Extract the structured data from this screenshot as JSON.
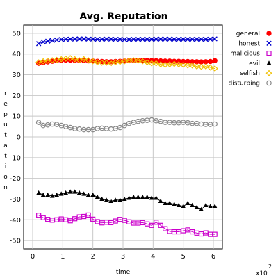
{
  "chart_data": {
    "type": "line",
    "title": "Avg. Reputation",
    "xlabel": "time",
    "ylabel": "reputation",
    "x_multiplier_label": "x10",
    "x_multiplier_exp": "2",
    "xlim": [
      -0.3,
      6.3
    ],
    "ylim": [
      -54,
      54
    ],
    "xticks": [
      0,
      1,
      2,
      3,
      4,
      5,
      6
    ],
    "yticks": [
      50,
      40,
      30,
      20,
      10,
      0,
      -10,
      -20,
      -30,
      -40,
      -50
    ],
    "grid": true,
    "legend_position": "right",
    "x": [
      0.2,
      0.35,
      0.5,
      0.65,
      0.8,
      0.95,
      1.1,
      1.25,
      1.4,
      1.55,
      1.7,
      1.85,
      2.0,
      2.15,
      2.3,
      2.45,
      2.6,
      2.75,
      2.9,
      3.05,
      3.2,
      3.35,
      3.5,
      3.65,
      3.8,
      3.95,
      4.1,
      4.25,
      4.4,
      4.55,
      4.7,
      4.85,
      5.0,
      5.15,
      5.3,
      5.45,
      5.6,
      5.75,
      5.9,
      6.05
    ],
    "series": [
      {
        "name": "general",
        "color": "#ff0000",
        "marker": "dot",
        "values": [
          35.5,
          35.8,
          36.2,
          36.5,
          36.8,
          36.9,
          37.0,
          37.0,
          36.9,
          36.8,
          36.8,
          36.7,
          36.6,
          36.5,
          36.4,
          36.3,
          36.3,
          36.4,
          36.5,
          36.6,
          36.8,
          36.9,
          37.0,
          37.0,
          36.9,
          36.9,
          36.8,
          36.7,
          36.6,
          36.6,
          36.5,
          36.5,
          36.4,
          36.4,
          36.3,
          36.3,
          36.2,
          36.3,
          36.4,
          36.8
        ]
      },
      {
        "name": "honest",
        "color": "#0000cc",
        "marker": "x",
        "values": [
          45.0,
          45.8,
          46.2,
          46.5,
          46.8,
          47.0,
          47.1,
          47.2,
          47.2,
          47.3,
          47.3,
          47.2,
          47.2,
          47.1,
          47.1,
          47.2,
          47.2,
          47.1,
          47.1,
          47.0,
          47.0,
          47.1,
          47.1,
          47.1,
          47.1,
          47.1,
          47.2,
          47.2,
          47.2,
          47.2,
          47.1,
          47.1,
          47.1,
          47.1,
          47.1,
          47.1,
          47.1,
          47.1,
          47.2,
          47.3
        ]
      },
      {
        "name": "malicious",
        "color": "#cc00cc",
        "marker": "square",
        "values": [
          -37.8,
          -39.0,
          -39.8,
          -40.2,
          -40.0,
          -39.6,
          -40.0,
          -40.5,
          -39.5,
          -38.6,
          -38.4,
          -37.7,
          -39.7,
          -40.9,
          -41.5,
          -41.2,
          -41.4,
          -40.6,
          -39.8,
          -40.3,
          -41.0,
          -41.6,
          -41.6,
          -41.4,
          -42.0,
          -42.7,
          -41.2,
          -42.7,
          -44.3,
          -45.6,
          -45.8,
          -45.8,
          -45.3,
          -44.9,
          -45.8,
          -46.4,
          -46.8,
          -46.3,
          -47.0,
          -47.0
        ]
      },
      {
        "name": "evil",
        "color": "#000000",
        "marker": "triangle",
        "values": [
          -27.0,
          -28.0,
          -28.0,
          -28.5,
          -28.0,
          -27.5,
          -27.0,
          -26.5,
          -26.5,
          -27.0,
          -27.5,
          -28.0,
          -28.0,
          -29.0,
          -30.0,
          -30.5,
          -31.0,
          -30.5,
          -30.5,
          -30.0,
          -29.5,
          -29.0,
          -29.0,
          -29.0,
          -29.0,
          -29.5,
          -29.5,
          -31.0,
          -32.0,
          -32.0,
          -32.5,
          -33.0,
          -33.5,
          -32.0,
          -33.0,
          -34.0,
          -35.0,
          -33.0,
          -33.5,
          -33.5
        ]
      },
      {
        "name": "selfish",
        "color": "#f0c000",
        "marker": "diamond",
        "values": [
          36.0,
          36.5,
          36.8,
          37.0,
          37.2,
          37.5,
          37.8,
          38.0,
          37.5,
          37.0,
          37.5,
          37.0,
          36.5,
          36.0,
          35.8,
          35.8,
          35.5,
          36.0,
          36.2,
          36.5,
          36.8,
          37.0,
          36.8,
          36.5,
          36.0,
          35.5,
          35.5,
          35.0,
          34.8,
          35.0,
          35.2,
          35.0,
          34.8,
          34.5,
          34.5,
          34.0,
          33.8,
          34.0,
          33.5,
          33.0
        ]
      },
      {
        "name": "disturbing",
        "color": "#888888",
        "marker": "circle",
        "values": [
          7.0,
          5.5,
          5.8,
          6.2,
          6.0,
          5.5,
          5.0,
          4.5,
          4.0,
          3.8,
          3.5,
          3.5,
          3.5,
          4.0,
          4.2,
          4.0,
          3.8,
          4.0,
          4.5,
          5.5,
          6.5,
          7.0,
          7.5,
          7.8,
          8.0,
          8.2,
          7.8,
          7.5,
          7.0,
          7.0,
          6.8,
          6.8,
          7.0,
          6.8,
          6.5,
          6.5,
          6.2,
          6.0,
          6.0,
          6.2
        ]
      }
    ]
  }
}
